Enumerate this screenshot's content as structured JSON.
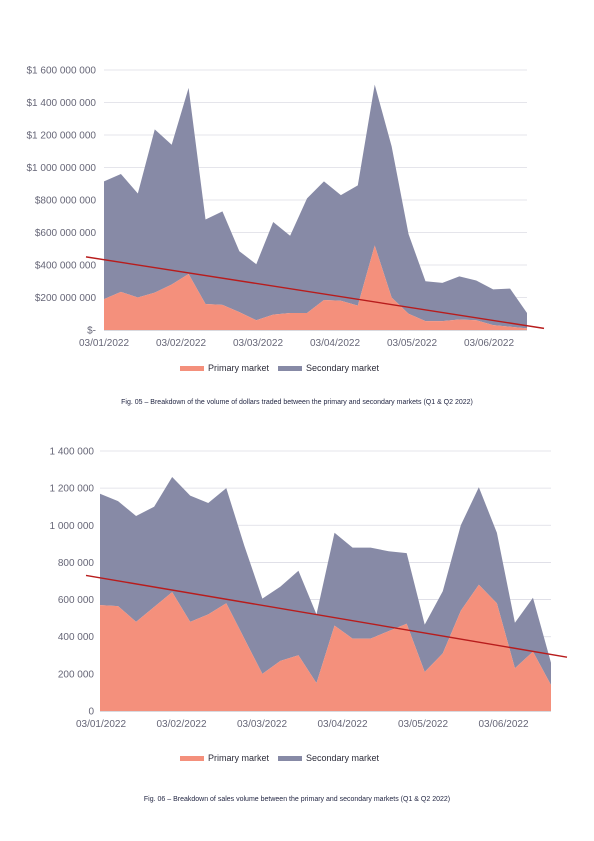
{
  "colors": {
    "primary": "#f4907c",
    "secondary": "#878aa6",
    "trend": "#b81c1c",
    "grid": "#dcdce4",
    "axis": "#9a9aa8"
  },
  "chart_data": [
    {
      "type": "area",
      "stacked": true,
      "xlabel": "",
      "ylabel": "",
      "ylim": [
        0,
        1600000000
      ],
      "y_ticks": [
        "$-",
        "$200 000 000",
        "$400 000 000",
        "$600 000 000",
        "$800 000 000",
        "$1 000 000 000",
        "$1 200 000 000",
        "$1 400 000 000",
        "$1 600 000 000"
      ],
      "x_tick_labels": [
        "03/01/2022",
        "03/02/2022",
        "03/03/2022",
        "03/04/2022",
        "03/05/2022",
        "03/06/2022"
      ],
      "grid": true,
      "legend_position": "bottom",
      "series": [
        {
          "name": "Primary market",
          "values": [
            190000000,
            235000000,
            200000000,
            230000000,
            280000000,
            345000000,
            160000000,
            155000000,
            110000000,
            60000000,
            95000000,
            105000000,
            105000000,
            185000000,
            180000000,
            150000000,
            520000000,
            200000000,
            100000000,
            55000000,
            55000000,
            65000000,
            60000000,
            30000000,
            20000000,
            10000000
          ]
        },
        {
          "name": "Secondary market",
          "values": [
            725000000,
            725000000,
            640000000,
            1005000000,
            860000000,
            1145000000,
            520000000,
            575000000,
            375000000,
            345000000,
            570000000,
            475000000,
            705000000,
            730000000,
            650000000,
            740000000,
            990000000,
            930000000,
            490000000,
            245000000,
            235000000,
            265000000,
            245000000,
            220000000,
            235000000,
            95000000
          ]
        }
      ],
      "trendline": {
        "start": 450000000,
        "end": 10000000
      },
      "caption": "Fig. 05 – Breakdown of the volume of dollars traded between the primary and secondary markets (Q1 & Q2 2022)"
    },
    {
      "type": "area",
      "stacked": true,
      "xlabel": "",
      "ylabel": "",
      "ylim": [
        0,
        1400000
      ],
      "y_ticks": [
        "0",
        "200 000",
        "400 000",
        "600 000",
        "800 000",
        "1 000 000",
        "1 200 000",
        "1 400 000"
      ],
      "x_tick_labels": [
        "03/01/2022",
        "03/02/2022",
        "03/03/2022",
        "03/04/2022",
        "03/05/2022",
        "03/06/2022"
      ],
      "grid": true,
      "legend_position": "bottom",
      "series": [
        {
          "name": "Primary market",
          "values": [
            570000,
            565000,
            480000,
            560000,
            640000,
            480000,
            520000,
            580000,
            390000,
            200000,
            270000,
            300000,
            150000,
            460000,
            390000,
            390000,
            430000,
            470000,
            210000,
            310000,
            540000,
            680000,
            580000,
            230000,
            320000,
            140000
          ]
        },
        {
          "name": "Secondary market",
          "values": [
            600000,
            565000,
            570000,
            540000,
            620000,
            680000,
            600000,
            620000,
            500000,
            405000,
            400000,
            455000,
            370000,
            500000,
            490000,
            490000,
            430000,
            380000,
            255000,
            335000,
            460000,
            525000,
            380000,
            245000,
            290000,
            120000
          ]
        }
      ],
      "trendline": {
        "start": 730000,
        "end": 290000
      },
      "caption": "Fig. 06 – Breakdown of sales volume between the primary and secondary markets (Q1 & Q2 2022)"
    }
  ]
}
